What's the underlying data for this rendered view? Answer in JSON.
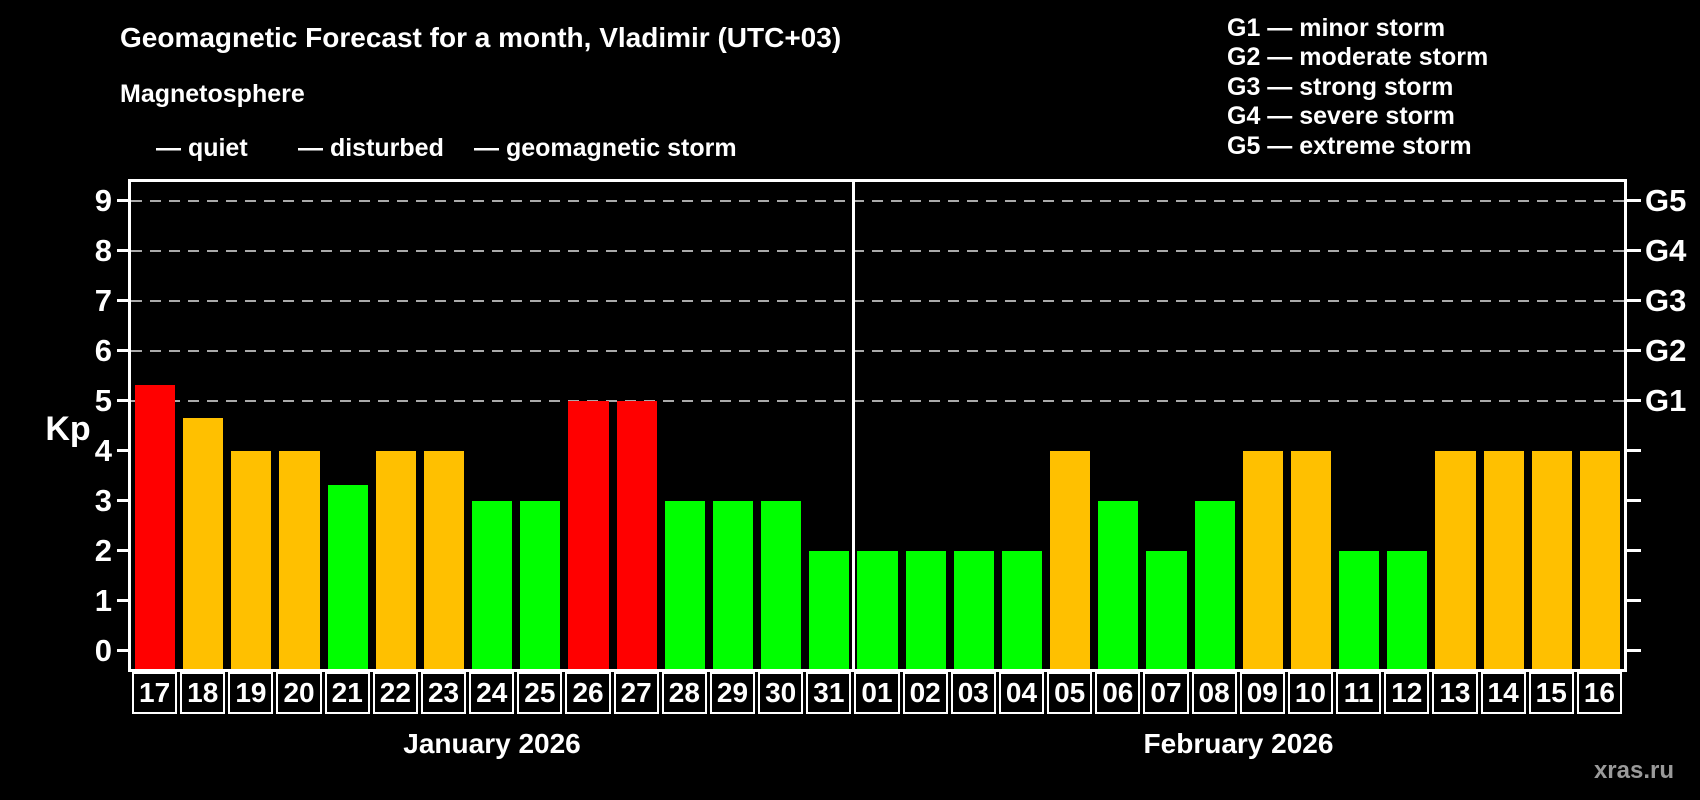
{
  "title": "Geomagnetic Forecast for a month, Vladimir (UTC+03)",
  "subtitle": "Magnetosphere",
  "legend": {
    "quiet": "— quiet",
    "disturbed": "— disturbed",
    "storm": "— geomagnetic storm"
  },
  "gscale_legend": [
    "G1 — minor storm",
    "G2 — moderate storm",
    "G3 — strong storm",
    "G4 — severe storm",
    "G5 — extreme storm"
  ],
  "colors": {
    "quiet": "#00ff00",
    "disturbed": "#ffc000",
    "storm": "#ff0000",
    "grid": "#aaaaaa",
    "axis": "#ffffff",
    "background": "#000000",
    "watermark": "#9a9a9a"
  },
  "y_axis": {
    "label": "Kp",
    "ticks": [
      "0",
      "1",
      "2",
      "3",
      "4",
      "5",
      "6",
      "7",
      "8",
      "9"
    ],
    "g_ticks": [
      {
        "kp": 5,
        "label": "G1"
      },
      {
        "kp": 6,
        "label": "G2"
      },
      {
        "kp": 7,
        "label": "G3"
      },
      {
        "kp": 8,
        "label": "G4"
      },
      {
        "kp": 9,
        "label": "G5"
      }
    ]
  },
  "watermark": "xras.ru",
  "chart_data": {
    "type": "bar",
    "title": "Geomagnetic Forecast for a month, Vladimir (UTC+03)",
    "ylabel": "Kp",
    "ylim": [
      0,
      9
    ],
    "grid": "dashed horizontal lines at Kp 5,6,7,8,9 (G1–G5)",
    "legend_position": "top-left",
    "months": [
      {
        "label": "January 2026",
        "days": [
          {
            "day": "17",
            "kp": 5.33,
            "status": "storm"
          },
          {
            "day": "18",
            "kp": 4.67,
            "status": "disturbed"
          },
          {
            "day": "19",
            "kp": 4,
            "status": "disturbed"
          },
          {
            "day": "20",
            "kp": 4,
            "status": "disturbed"
          },
          {
            "day": "21",
            "kp": 3.33,
            "status": "quiet"
          },
          {
            "day": "22",
            "kp": 4,
            "status": "disturbed"
          },
          {
            "day": "23",
            "kp": 4,
            "status": "disturbed"
          },
          {
            "day": "24",
            "kp": 3,
            "status": "quiet"
          },
          {
            "day": "25",
            "kp": 3,
            "status": "quiet"
          },
          {
            "day": "26",
            "kp": 5,
            "status": "storm"
          },
          {
            "day": "27",
            "kp": 5,
            "status": "storm"
          },
          {
            "day": "28",
            "kp": 3,
            "status": "quiet"
          },
          {
            "day": "29",
            "kp": 3,
            "status": "quiet"
          },
          {
            "day": "30",
            "kp": 3,
            "status": "quiet"
          },
          {
            "day": "31",
            "kp": 2,
            "status": "quiet"
          }
        ]
      },
      {
        "label": "February 2026",
        "days": [
          {
            "day": "01",
            "kp": 2,
            "status": "quiet"
          },
          {
            "day": "02",
            "kp": 2,
            "status": "quiet"
          },
          {
            "day": "03",
            "kp": 2,
            "status": "quiet"
          },
          {
            "day": "04",
            "kp": 2,
            "status": "quiet"
          },
          {
            "day": "05",
            "kp": 4,
            "status": "disturbed"
          },
          {
            "day": "06",
            "kp": 3,
            "status": "quiet"
          },
          {
            "day": "07",
            "kp": 2,
            "status": "quiet"
          },
          {
            "day": "08",
            "kp": 3,
            "status": "quiet"
          },
          {
            "day": "09",
            "kp": 4,
            "status": "disturbed"
          },
          {
            "day": "10",
            "kp": 4,
            "status": "disturbed"
          },
          {
            "day": "11",
            "kp": 2,
            "status": "quiet"
          },
          {
            "day": "12",
            "kp": 2,
            "status": "quiet"
          },
          {
            "day": "13",
            "kp": 4,
            "status": "disturbed"
          },
          {
            "day": "14",
            "kp": 4,
            "status": "disturbed"
          },
          {
            "day": "15",
            "kp": 4,
            "status": "disturbed"
          },
          {
            "day": "16",
            "kp": 4,
            "status": "disturbed"
          }
        ]
      }
    ]
  }
}
